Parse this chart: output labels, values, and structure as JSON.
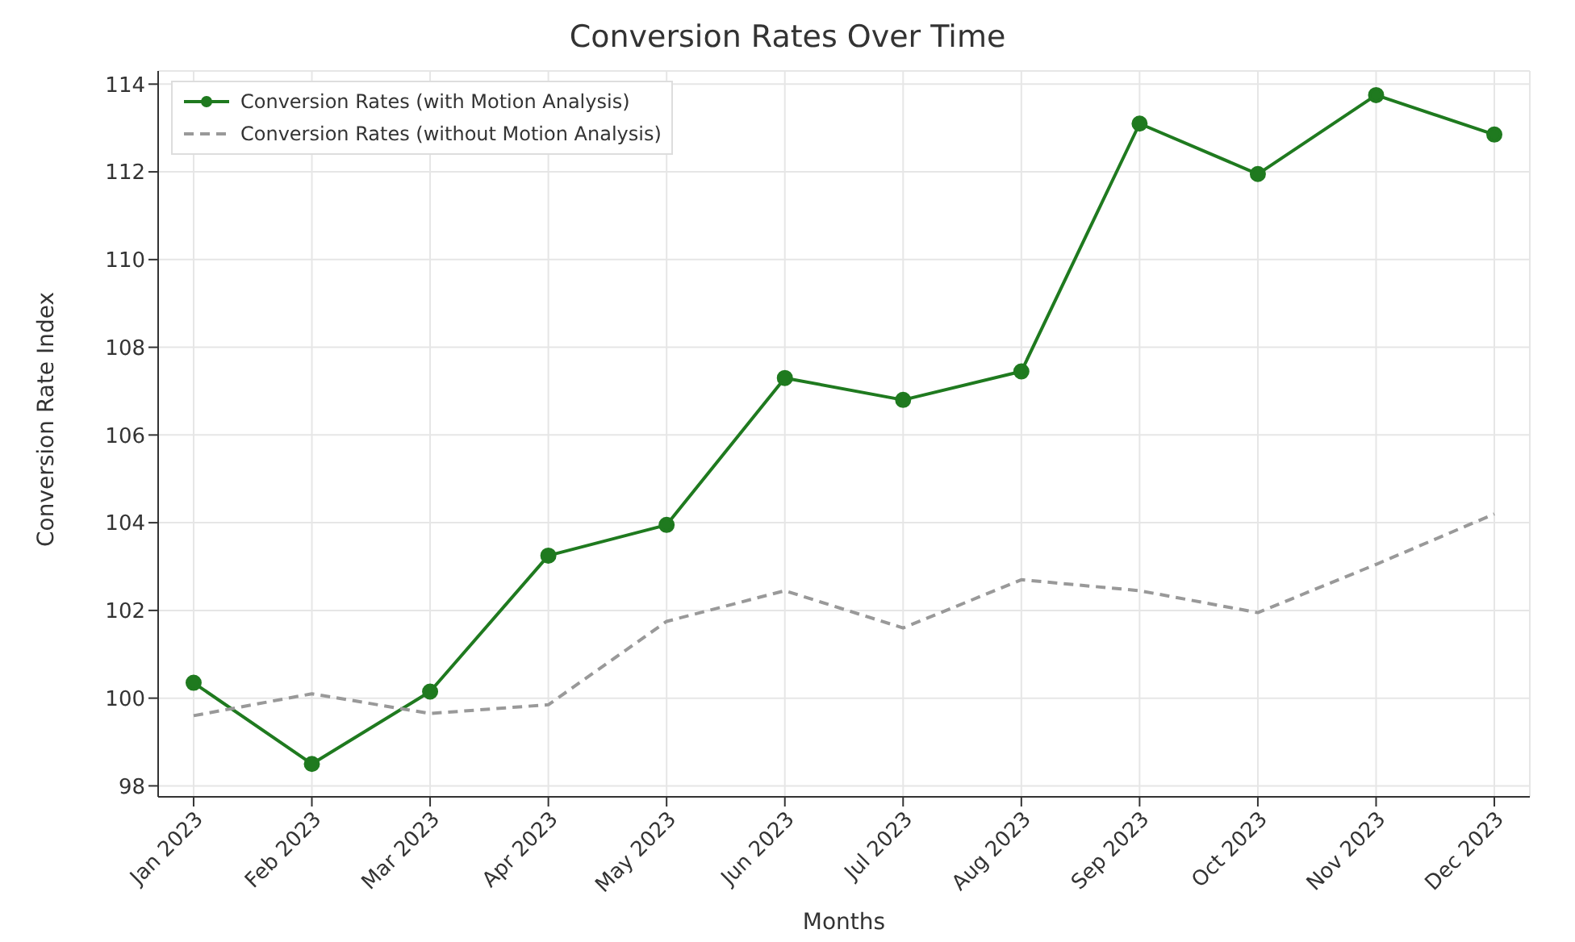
{
  "chart_data": {
    "type": "line",
    "title": "Conversion Rates Over Time",
    "xlabel": "Months",
    "ylabel": "Conversion Rate Index",
    "categories": [
      "Jan 2023",
      "Feb 2023",
      "Mar 2023",
      "Apr 2023",
      "May 2023",
      "Jun 2023",
      "Jul 2023",
      "Aug 2023",
      "Sep 2023",
      "Oct 2023",
      "Nov 2023",
      "Dec 2023"
    ],
    "series": [
      {
        "name": "Conversion Rates (with Motion Analysis)",
        "color": "#1f7a1f",
        "marker": "circle",
        "line_style": "solid",
        "values": [
          100.35,
          98.5,
          100.15,
          103.25,
          103.95,
          107.3,
          106.8,
          107.45,
          113.1,
          111.95,
          113.75,
          112.85
        ]
      },
      {
        "name": "Conversion Rates (without Motion Analysis)",
        "color": "#999999",
        "marker": "none",
        "line_style": "dashed",
        "values": [
          99.6,
          100.1,
          99.65,
          99.85,
          101.75,
          102.45,
          101.6,
          102.7,
          102.45,
          101.95,
          103.05,
          104.2
        ]
      }
    ],
    "ylim": [
      97.75,
      114.3
    ],
    "yticks": [
      98,
      100,
      102,
      104,
      106,
      108,
      110,
      112,
      114
    ],
    "grid": true,
    "legend": "top left"
  }
}
